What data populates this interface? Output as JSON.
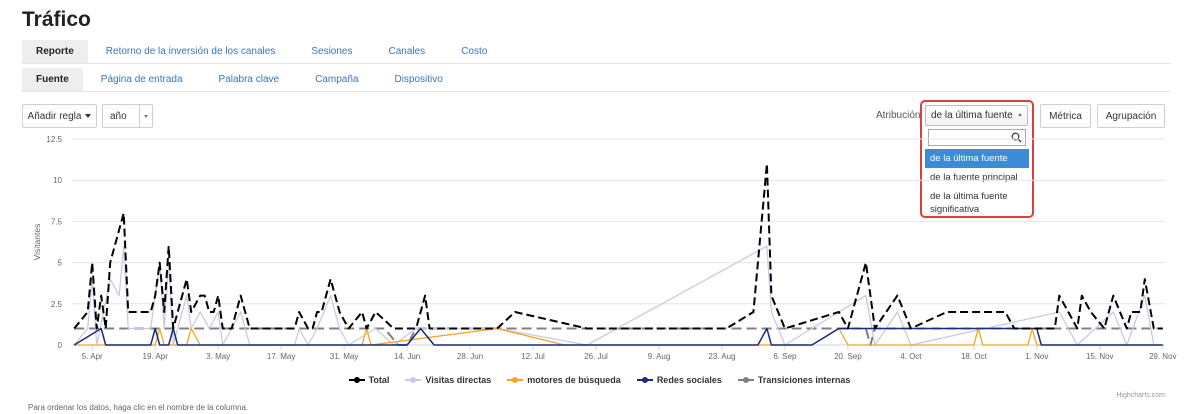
{
  "page": {
    "title": "Tráfico"
  },
  "tabs_row1": [
    {
      "label": "Reporte",
      "active": true
    },
    {
      "label": "Retorno de la inversión de los canales",
      "active": false
    },
    {
      "label": "Sesiones",
      "active": false
    },
    {
      "label": "Canales",
      "active": false
    },
    {
      "label": "Costo",
      "active": false
    }
  ],
  "tabs_row2": [
    {
      "label": "Fuente",
      "active": true
    },
    {
      "label": "Página de entrada",
      "active": false
    },
    {
      "label": "Palabra clave",
      "active": false
    },
    {
      "label": "Campaña",
      "active": false
    },
    {
      "label": "Dispositivo",
      "active": false
    }
  ],
  "toolbar": {
    "add_rule_label": "Añadir regla",
    "period_value": "año",
    "attribution_label": "Atribución",
    "attribution_value": "de la última fuente",
    "attribution_options": [
      "de la última fuente",
      "de la fuente principal",
      "de la última fuente significativa"
    ],
    "attribution_selected": 0,
    "metric_label": "Métrica",
    "grouping_label": "Agrupación"
  },
  "footer": {
    "note": "Para ordenar los datos, haga clic en el nombre de la columna.",
    "credit": "Highcharts.com"
  },
  "icons": {
    "search": "search-icon",
    "caret": "caret-down-icon"
  },
  "chart_data": {
    "type": "line",
    "ylabel": "Visitantes",
    "ylim": [
      0,
      12.5
    ],
    "yticks": [
      "0",
      "2.5",
      "5",
      "7.5",
      "10",
      "12.5"
    ],
    "xticks": [
      "5. Apr",
      "19. Apr",
      "3. May",
      "17. May",
      "31. May",
      "14. Jun",
      "28. Jun",
      "12. Jul",
      "26. Jul",
      "9. Aug",
      "23. Aug",
      "6. Sep",
      "20. Sep",
      "4. Oct",
      "18. Oct",
      "1. Nov",
      "15. Nov",
      "29. Nov"
    ],
    "xrange_days": [
      -4.5,
      238.5
    ],
    "series": [
      {
        "name": "Total",
        "color": "#000000",
        "dash": "8,4",
        "width": 2,
        "points": [
          [
            -4,
            1
          ],
          [
            -1,
            2
          ],
          [
            0,
            5
          ],
          [
            1,
            1
          ],
          [
            2,
            3
          ],
          [
            3,
            1
          ],
          [
            4,
            5
          ],
          [
            6,
            7
          ],
          [
            7,
            8
          ],
          [
            8,
            2
          ],
          [
            10,
            2
          ],
          [
            13,
            2
          ],
          [
            14,
            3
          ],
          [
            15,
            5
          ],
          [
            16,
            2
          ],
          [
            17,
            6
          ],
          [
            18,
            1
          ],
          [
            19,
            2
          ],
          [
            21,
            4
          ],
          [
            22,
            2
          ],
          [
            24,
            3
          ],
          [
            25,
            3
          ],
          [
            26,
            2
          ],
          [
            27,
            2
          ],
          [
            28,
            3
          ],
          [
            29,
            1
          ],
          [
            31,
            1
          ],
          [
            33,
            3
          ],
          [
            35,
            1
          ],
          [
            45,
            1
          ],
          [
            46,
            2
          ],
          [
            48,
            1
          ],
          [
            49,
            1
          ],
          [
            50,
            2
          ],
          [
            51,
            2
          ],
          [
            53,
            4
          ],
          [
            55,
            2
          ],
          [
            57,
            1
          ],
          [
            60,
            2
          ],
          [
            61,
            1
          ],
          [
            63,
            2
          ],
          [
            67,
            1
          ],
          [
            72,
            1
          ],
          [
            74,
            3
          ],
          [
            75,
            1
          ],
          [
            90,
            1
          ],
          [
            94,
            2
          ],
          [
            110,
            1
          ],
          [
            141,
            1
          ],
          [
            147,
            2
          ],
          [
            150,
            11
          ],
          [
            151,
            3
          ],
          [
            154,
            1
          ],
          [
            166,
            2
          ],
          [
            168,
            1
          ],
          [
            172,
            5
          ],
          [
            174,
            1
          ],
          [
            179,
            3
          ],
          [
            182,
            1
          ],
          [
            190,
            2
          ],
          [
            203,
            2
          ],
          [
            205,
            1
          ],
          [
            214,
            1
          ],
          [
            215,
            3
          ],
          [
            217,
            2
          ],
          [
            219,
            1
          ],
          [
            220,
            3
          ],
          [
            222,
            2
          ],
          [
            225,
            1
          ],
          [
            227,
            3
          ],
          [
            230,
            1
          ],
          [
            231,
            2
          ],
          [
            233,
            2
          ],
          [
            234,
            4
          ],
          [
            236,
            1
          ],
          [
            238,
            1
          ]
        ]
      },
      {
        "name": "Visitas directas",
        "color": "#c9c9e6",
        "dash": "",
        "width": 1.3,
        "points": [
          [
            -4,
            0
          ],
          [
            -1,
            1
          ],
          [
            0,
            4
          ],
          [
            1,
            0
          ],
          [
            4,
            4
          ],
          [
            6,
            3
          ],
          [
            7,
            6
          ],
          [
            8,
            1
          ],
          [
            13,
            1
          ],
          [
            15,
            5
          ],
          [
            16,
            1
          ],
          [
            17,
            5
          ],
          [
            18,
            0
          ],
          [
            21,
            3
          ],
          [
            22,
            1
          ],
          [
            24,
            2
          ],
          [
            26,
            1
          ],
          [
            28,
            2
          ],
          [
            29,
            0
          ],
          [
            31,
            1
          ],
          [
            33,
            2
          ],
          [
            35,
            0
          ],
          [
            45,
            0
          ],
          [
            46,
            1
          ],
          [
            48,
            0
          ],
          [
            50,
            1
          ],
          [
            53,
            3
          ],
          [
            55,
            1
          ],
          [
            57,
            0
          ],
          [
            63,
            1
          ],
          [
            67,
            0
          ],
          [
            72,
            1
          ],
          [
            90,
            1
          ],
          [
            110,
            0
          ],
          [
            150,
            6
          ],
          [
            151,
            2
          ],
          [
            154,
            0
          ],
          [
            172,
            3
          ],
          [
            174,
            0
          ],
          [
            179,
            2
          ],
          [
            182,
            0
          ],
          [
            215,
            2
          ],
          [
            217,
            1
          ],
          [
            219,
            0
          ],
          [
            227,
            2
          ],
          [
            230,
            0
          ],
          [
            234,
            3
          ],
          [
            236,
            0
          ]
        ]
      },
      {
        "name": "motores de búsqueda",
        "color": "#f4a51d",
        "dash": "",
        "width": 1.3,
        "points": [
          [
            -4,
            0
          ],
          [
            14,
            0
          ],
          [
            15,
            1
          ],
          [
            16,
            0
          ],
          [
            21,
            0
          ],
          [
            22,
            1
          ],
          [
            24,
            0
          ],
          [
            60,
            0
          ],
          [
            61,
            1
          ],
          [
            62,
            0
          ],
          [
            90,
            1
          ],
          [
            105,
            0
          ],
          [
            160,
            0
          ],
          [
            166,
            1
          ],
          [
            168,
            0
          ],
          [
            196,
            0
          ],
          [
            197,
            1
          ],
          [
            198,
            0
          ],
          [
            208,
            0
          ],
          [
            209,
            1
          ],
          [
            210,
            0
          ],
          [
            238,
            0
          ]
        ]
      },
      {
        "name": "Redes sociales",
        "color": "#1a2a7c",
        "dash": "",
        "width": 1.5,
        "points": [
          [
            -4,
            0
          ],
          [
            2,
            1
          ],
          [
            3,
            0
          ],
          [
            13,
            0
          ],
          [
            14,
            1
          ],
          [
            15,
            0
          ],
          [
            17,
            0
          ],
          [
            18,
            1
          ],
          [
            19,
            0
          ],
          [
            70,
            0
          ],
          [
            73,
            1
          ],
          [
            76,
            0
          ],
          [
            148,
            0
          ],
          [
            150,
            1
          ],
          [
            151,
            0
          ],
          [
            160,
            0
          ],
          [
            166,
            1
          ],
          [
            200,
            1
          ],
          [
            210,
            1
          ],
          [
            211,
            0
          ],
          [
            238,
            0
          ]
        ]
      },
      {
        "name": "Transiciones internas",
        "color": "#808080",
        "dash": "10,5",
        "width": 2,
        "points": [
          [
            -4,
            1
          ],
          [
            63,
            1
          ],
          [
            65,
            1
          ],
          [
            68,
            0
          ],
          [
            70,
            0
          ],
          [
            72,
            1
          ],
          [
            172,
            1
          ],
          [
            173,
            0
          ],
          [
            174,
            1
          ],
          [
            238,
            1
          ]
        ]
      }
    ]
  }
}
